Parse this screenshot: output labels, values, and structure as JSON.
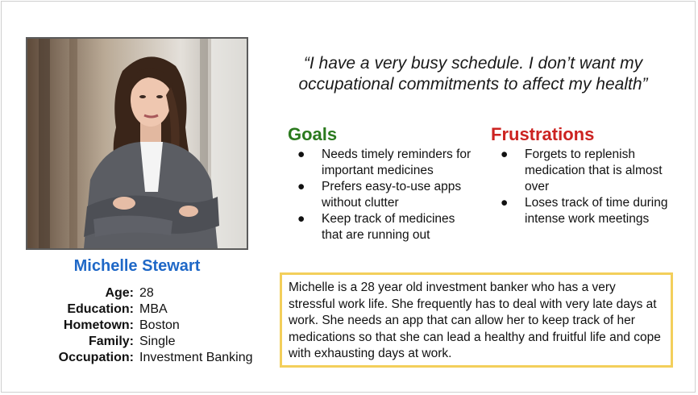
{
  "persona": {
    "name": "Michelle Stewart",
    "photo_icon": "portrait-photo",
    "details": [
      {
        "label": "Age:",
        "value": "28"
      },
      {
        "label": "Education:",
        "value": "MBA"
      },
      {
        "label": "Hometown:",
        "value": "Boston"
      },
      {
        "label": "Family:",
        "value": "Single"
      },
      {
        "label": "Occupation:",
        "value": "Investment Banking"
      }
    ]
  },
  "quote": "“I have a very busy schedule. I don’t want my occupational commitments to affect my health”",
  "goals": {
    "title": "Goals",
    "items": [
      "Needs timely reminders for important medicines",
      "Prefers easy-to-use apps without clutter",
      "Keep track of medicines that are running out"
    ]
  },
  "frustrations": {
    "title": "Frustrations",
    "items": [
      "Forgets to replenish medication that is almost over",
      "Loses track of time during intense work meetings"
    ]
  },
  "bio": "Michelle is a 28 year old investment banker who has a very stressful work life. She frequently has to deal with very late days at work. She needs an app that can allow her to keep track of her medications so that she can lead a healthy and fruitful life and cope with exhausting days at work.",
  "bullet_char": "●",
  "colors": {
    "name": "#1f68c7",
    "goals_title": "#2b7a1e",
    "frustrations_title": "#cc2321",
    "bio_border": "#f3cf5b"
  }
}
